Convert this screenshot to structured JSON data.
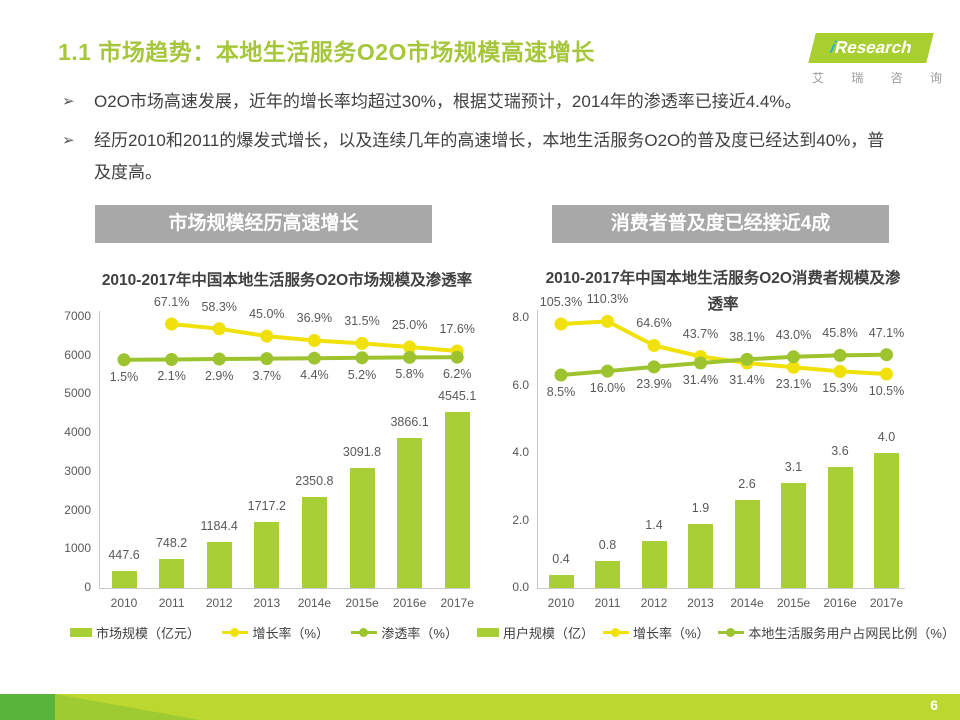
{
  "page": {
    "title": "1.1 市场趋势：本地生活服务O2O市场规模高速增长",
    "page_number": "6"
  },
  "logo": {
    "brand_i": "i",
    "brand_rest": "Research",
    "subtitle": "艾 瑞 咨 询"
  },
  "icons": {
    "bullet_arrow": "➢"
  },
  "bullets": [
    "O2O市场高速发展，近年的增长率均超过30%，根据艾瑞预计，2014年的渗透率已接近4.4%。",
    "经历2010和2011的爆发式增长，以及连续几年的高速增长，本地生活服务O2O的普及度已经达到40%，普及度高。"
  ],
  "section_headers": [
    "市场规模经历高速增长",
    "消费者普及度已经接近4成"
  ],
  "colors": {
    "title_green": "#a6c73c",
    "bar_green": "#a8cf35",
    "line_green": "#9dc42f",
    "line_yellow": "#f0e10b",
    "header_gray": "#a8a8a8",
    "axis_gray": "#c9c9c9",
    "label_gray": "#595959",
    "footer_main": "#bcd72f",
    "footer_dark": "#58b43a",
    "footer_mid": "#9ecb31",
    "logo_green": "#a8ce2f",
    "logo_i_teal": "#29b6cf"
  },
  "chart_data": [
    {
      "type": "bar",
      "title": "2010-2017年中国本地生活服务O2O市场规模及渗透率",
      "categories": [
        "2010",
        "2011",
        "2012",
        "2013",
        "2014e",
        "2015e",
        "2016e",
        "2017e"
      ],
      "bar_series": {
        "name": "市场规模（亿元）",
        "values": [
          447.6,
          748.2,
          1184.4,
          1717.2,
          2350.8,
          3091.8,
          3866.1,
          4545.1
        ]
      },
      "line_series": [
        {
          "name": "增长率（%）",
          "values": [
            null,
            67.1,
            58.3,
            45.0,
            36.9,
            31.5,
            25.0,
            17.6
          ]
        },
        {
          "name": "渗透率（%）",
          "values": [
            1.5,
            2.1,
            2.9,
            3.7,
            4.4,
            5.2,
            5.8,
            6.2
          ]
        }
      ],
      "y_axis": {
        "ticks": [
          "0",
          "1000",
          "2000",
          "3000",
          "4000",
          "5000",
          "6000",
          "7000"
        ],
        "max": 7000
      },
      "grid": false,
      "legend_position": "bottom"
    },
    {
      "type": "bar",
      "title": "2010-2017年中国本地生活服务O2O消费者规模及渗透率",
      "categories": [
        "2010",
        "2011",
        "2012",
        "2013",
        "2014e",
        "2015e",
        "2016e",
        "2017e"
      ],
      "bar_series": {
        "name": "用户规模（亿）",
        "values": [
          0.4,
          0.8,
          1.4,
          1.9,
          2.6,
          3.1,
          3.6,
          4.0
        ]
      },
      "line_series": [
        {
          "name": "增长率（%）",
          "values": [
            105.3,
            110.3,
            64.6,
            43.7,
            31.4,
            23.1,
            15.3,
            10.5
          ]
        },
        {
          "name": "本地生活服务用户占网民比例（%）",
          "values": [
            8.5,
            16.0,
            23.9,
            31.4,
            38.1,
            43.0,
            45.8,
            47.1
          ]
        }
      ],
      "y_axis": {
        "ticks": [
          "0.0",
          "2.0",
          "4.0",
          "6.0",
          "8.0"
        ],
        "max": 8.0
      },
      "grid": false,
      "legend_position": "bottom"
    }
  ]
}
